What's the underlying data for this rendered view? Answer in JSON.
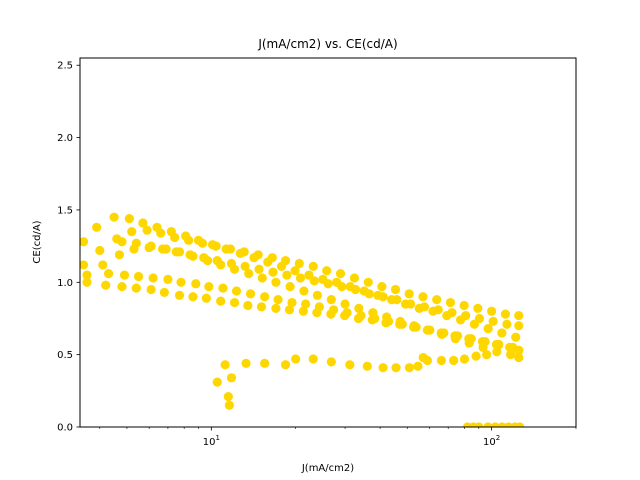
{
  "chart_data": {
    "type": "scatter",
    "title": "J(mA/cm2) vs. CE(cd/A)",
    "xlabel": "J(mA/cm2)",
    "ylabel": "CE(cd/A)",
    "xscale": "log",
    "xlim": [
      3.4,
      200
    ],
    "ylim": [
      0.0,
      2.55
    ],
    "x_ticks": [
      {
        "value": 10,
        "base": "10",
        "exp": "1"
      },
      {
        "value": 100,
        "base": "10",
        "exp": "2"
      }
    ],
    "y_ticks": [
      {
        "value": 0.0,
        "label": "0.0"
      },
      {
        "value": 0.5,
        "label": "0.5"
      },
      {
        "value": 1.0,
        "label": "1.0"
      },
      {
        "value": 1.5,
        "label": "1.5"
      },
      {
        "value": 2.0,
        "label": "2.0"
      },
      {
        "value": 2.5,
        "label": "2.5"
      }
    ],
    "grid": false,
    "legend": false,
    "marker_color": "#FFD700",
    "series": [
      {
        "points": [
          [
            3.5,
            1.12
          ],
          [
            4.0,
            1.22
          ],
          [
            4.6,
            1.3
          ],
          [
            5.2,
            1.35
          ],
          [
            5.9,
            1.36
          ],
          [
            6.6,
            1.34
          ],
          [
            7.4,
            1.31
          ],
          [
            8.3,
            1.29
          ],
          [
            9.3,
            1.27
          ],
          [
            10.4,
            1.25
          ],
          [
            11.7,
            1.23
          ],
          [
            13.1,
            1.21
          ],
          [
            14.7,
            1.19
          ],
          [
            16.5,
            1.17
          ],
          [
            18.4,
            1.15
          ],
          [
            20.6,
            1.13
          ],
          [
            23.1,
            1.11
          ],
          [
            25.8,
            1.08
          ],
          [
            28.9,
            1.06
          ],
          [
            32.4,
            1.03
          ],
          [
            36.3,
            1.0
          ],
          [
            40.6,
            0.97
          ],
          [
            45.4,
            0.95
          ],
          [
            50.8,
            0.92
          ],
          [
            56.9,
            0.9
          ],
          [
            63.7,
            0.88
          ],
          [
            71.3,
            0.86
          ],
          [
            79.8,
            0.84
          ],
          [
            89.3,
            0.82
          ],
          [
            100.0,
            0.8
          ],
          [
            112.0,
            0.78
          ],
          [
            125.0,
            0.77
          ]
        ]
      },
      {
        "points": [
          [
            3.6,
            1.05
          ],
          [
            4.1,
            1.12
          ],
          [
            4.7,
            1.19
          ],
          [
            5.3,
            1.23
          ],
          [
            6.0,
            1.24
          ],
          [
            6.7,
            1.23
          ],
          [
            7.5,
            1.21
          ],
          [
            8.4,
            1.19
          ],
          [
            9.4,
            1.17
          ],
          [
            10.5,
            1.15
          ],
          [
            11.8,
            1.13
          ],
          [
            13.2,
            1.11
          ],
          [
            14.8,
            1.09
          ],
          [
            16.6,
            1.07
          ],
          [
            18.6,
            1.05
          ],
          [
            20.8,
            1.03
          ],
          [
            23.3,
            1.01
          ],
          [
            26.1,
            0.99
          ],
          [
            29.2,
            0.97
          ],
          [
            32.7,
            0.95
          ],
          [
            36.6,
            0.92
          ],
          [
            41.0,
            0.9
          ],
          [
            45.9,
            0.88
          ],
          [
            51.4,
            0.85
          ],
          [
            57.6,
            0.83
          ],
          [
            64.5,
            0.81
          ],
          [
            72.2,
            0.79
          ],
          [
            80.8,
            0.77
          ],
          [
            90.5,
            0.75
          ],
          [
            101.3,
            0.73
          ],
          [
            113.4,
            0.71
          ],
          [
            125.0,
            0.7
          ]
        ]
      },
      {
        "points": [
          [
            3.5,
            1.28
          ],
          [
            3.9,
            1.38
          ],
          [
            4.5,
            1.45
          ],
          [
            5.1,
            1.44
          ],
          [
            5.7,
            1.41
          ],
          [
            6.4,
            1.38
          ],
          [
            7.2,
            1.35
          ],
          [
            8.1,
            1.32
          ],
          [
            9.0,
            1.29
          ],
          [
            10.1,
            1.26
          ],
          [
            11.3,
            1.23
          ],
          [
            12.7,
            1.2
          ],
          [
            14.2,
            1.17
          ],
          [
            15.9,
            1.14
          ],
          [
            17.8,
            1.11
          ],
          [
            19.9,
            1.08
          ],
          [
            22.3,
            1.05
          ],
          [
            25.0,
            1.02
          ],
          [
            28.0,
            1.0
          ],
          [
            31.3,
            0.97
          ],
          [
            35.1,
            0.94
          ],
          [
            39.3,
            0.91
          ],
          [
            44.0,
            0.88
          ],
          [
            49.3,
            0.85
          ],
          [
            55.2,
            0.82
          ],
          [
            61.8,
            0.8
          ],
          [
            69.2,
            0.77
          ],
          [
            77.5,
            0.74
          ],
          [
            86.8,
            0.71
          ],
          [
            97.2,
            0.68
          ],
          [
            108.8,
            0.65
          ],
          [
            121.9,
            0.62
          ]
        ]
      },
      {
        "points": [
          [
            3.6,
            1.0
          ],
          [
            4.2,
            0.98
          ],
          [
            4.8,
            0.97
          ],
          [
            5.4,
            0.96
          ],
          [
            6.1,
            0.95
          ],
          [
            6.8,
            0.93
          ],
          [
            7.7,
            0.91
          ],
          [
            8.6,
            0.9
          ],
          [
            9.6,
            0.89
          ],
          [
            10.8,
            0.87
          ],
          [
            12.1,
            0.86
          ],
          [
            13.5,
            0.84
          ],
          [
            15.1,
            0.83
          ],
          [
            17.0,
            0.82
          ],
          [
            19.0,
            0.81
          ],
          [
            21.3,
            0.8
          ],
          [
            23.8,
            0.79
          ],
          [
            26.7,
            0.78
          ],
          [
            29.9,
            0.77
          ],
          [
            33.5,
            0.75
          ],
          [
            37.5,
            0.74
          ],
          [
            42.0,
            0.72
          ],
          [
            47.0,
            0.71
          ],
          [
            52.7,
            0.69
          ],
          [
            59.0,
            0.67
          ],
          [
            66.1,
            0.65
          ],
          [
            74.0,
            0.63
          ],
          [
            82.9,
            0.61
          ],
          [
            92.8,
            0.59
          ],
          [
            104.0,
            0.57
          ],
          [
            116.0,
            0.55
          ],
          [
            125.0,
            0.53
          ]
        ]
      },
      {
        "points": [
          [
            4.3,
            1.06
          ],
          [
            4.9,
            1.05
          ],
          [
            5.5,
            1.04
          ],
          [
            6.2,
            1.03
          ],
          [
            7.0,
            1.02
          ],
          [
            7.8,
            1.0
          ],
          [
            8.8,
            0.99
          ],
          [
            9.8,
            0.97
          ],
          [
            11.0,
            0.96
          ],
          [
            12.3,
            0.94
          ],
          [
            13.8,
            0.92
          ],
          [
            15.5,
            0.9
          ],
          [
            17.3,
            0.88
          ],
          [
            19.4,
            0.86
          ],
          [
            21.7,
            0.85
          ],
          [
            24.3,
            0.83
          ],
          [
            27.3,
            0.81
          ],
          [
            30.5,
            0.79
          ],
          [
            34.2,
            0.77
          ],
          [
            38.3,
            0.75
          ],
          [
            42.9,
            0.73
          ],
          [
            48.0,
            0.71
          ],
          [
            53.8,
            0.69
          ],
          [
            60.2,
            0.67
          ],
          [
            67.5,
            0.65
          ],
          [
            75.6,
            0.63
          ],
          [
            84.6,
            0.61
          ],
          [
            94.8,
            0.59
          ],
          [
            106.1,
            0.57
          ],
          [
            118.9,
            0.55
          ],
          [
            125.0,
            0.53
          ]
        ]
      },
      {
        "points": [
          [
            4.8,
            1.28
          ],
          [
            5.4,
            1.27
          ],
          [
            6.1,
            1.25
          ],
          [
            6.9,
            1.23
          ],
          [
            7.7,
            1.21
          ],
          [
            8.6,
            1.18
          ],
          [
            9.7,
            1.15
          ],
          [
            10.8,
            1.12
          ],
          [
            12.1,
            1.09
          ],
          [
            13.6,
            1.06
          ],
          [
            15.2,
            1.03
          ],
          [
            17.0,
            1.0
          ],
          [
            19.1,
            0.97
          ],
          [
            21.4,
            0.94
          ],
          [
            23.9,
            0.91
          ],
          [
            26.8,
            0.88
          ],
          [
            30.0,
            0.85
          ],
          [
            33.6,
            0.82
          ],
          [
            37.7,
            0.79
          ],
          [
            42.2,
            0.76
          ],
          [
            47.2,
            0.73
          ],
          [
            52.9,
            0.7
          ],
          [
            59.3,
            0.67
          ],
          [
            66.4,
            0.64
          ],
          [
            74.3,
            0.61
          ],
          [
            83.2,
            0.58
          ],
          [
            93.2,
            0.55
          ],
          [
            104.4,
            0.52
          ],
          [
            116.9,
            0.5
          ],
          [
            125.0,
            0.48
          ]
        ]
      },
      {
        "points": [
          [
            10.5,
            0.31
          ],
          [
            11.2,
            0.43
          ],
          [
            11.5,
            0.21
          ],
          [
            11.6,
            0.15
          ],
          [
            11.8,
            0.34
          ],
          [
            13.3,
            0.44
          ],
          [
            15.5,
            0.44
          ],
          [
            18.4,
            0.43
          ],
          [
            20.0,
            0.47
          ],
          [
            23.1,
            0.47
          ],
          [
            26.8,
            0.45
          ],
          [
            31.2,
            0.43
          ],
          [
            36.0,
            0.42
          ],
          [
            41.0,
            0.41
          ],
          [
            45.6,
            0.41
          ],
          [
            50.9,
            0.41
          ],
          [
            54.6,
            0.42
          ],
          [
            57.0,
            0.48
          ],
          [
            59.0,
            0.46
          ],
          [
            66.2,
            0.46
          ],
          [
            73.2,
            0.46
          ],
          [
            80.0,
            0.47
          ],
          [
            88.0,
            0.49
          ],
          [
            96.0,
            0.5
          ]
        ]
      },
      {
        "points": [
          [
            82.0,
            0.0
          ],
          [
            86.0,
            0.0
          ],
          [
            90.0,
            0.0
          ],
          [
            97.0,
            0.0
          ],
          [
            103.0,
            0.0
          ],
          [
            109.0,
            0.0
          ],
          [
            115.0,
            0.0
          ],
          [
            121.0,
            0.0
          ],
          [
            126.0,
            0.0
          ]
        ]
      }
    ]
  }
}
